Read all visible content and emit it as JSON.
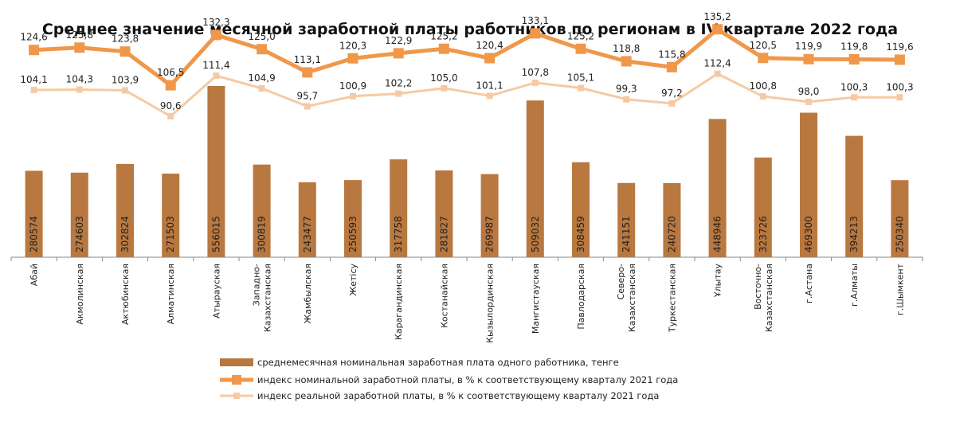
{
  "chart_data": {
    "type": "bar",
    "title": "Среднее значение месячной заработной платы работников по регионам в IV квартале 2022 года",
    "categories": [
      [
        "Абай"
      ],
      [
        "Акмолинская"
      ],
      [
        "Актюбинская"
      ],
      [
        "Алматинская"
      ],
      [
        "Атырауская"
      ],
      [
        "Западно-",
        "Казахстанская"
      ],
      [
        "Жамбылская"
      ],
      [
        "Жетісу"
      ],
      [
        "Карагандинская"
      ],
      [
        "Костанайская"
      ],
      [
        "Кызылординская"
      ],
      [
        "Мангистауская"
      ],
      [
        "Павлодарская"
      ],
      [
        "Северо-",
        "Казахстанская"
      ],
      [
        "Туркестанская"
      ],
      [
        "Ұлытау"
      ],
      [
        "Восточно-",
        "Казахстанская"
      ],
      [
        "г.Астана"
      ],
      [
        "г.Алматы"
      ],
      [
        "г.Шымкент"
      ]
    ],
    "series": [
      {
        "name": "среднемесячная номинальная заработная плата одного работника, тенге",
        "type": "bar",
        "color": "#b9783f",
        "values": [
          280574,
          274603,
          302824,
          271503,
          556015,
          300819,
          243477,
          250593,
          317758,
          281827,
          269987,
          509032,
          308459,
          241151,
          240720,
          448946,
          323726,
          469300,
          394213,
          250340
        ]
      },
      {
        "name": "индекс номинальной заработной платы, в % к соответствующему кварталу 2021 года",
        "type": "line",
        "color": "#f0974a",
        "values": [
          124.6,
          125.8,
          123.8,
          106.5,
          132.3,
          125.0,
          113.1,
          120.3,
          122.9,
          125.2,
          120.4,
          133.1,
          125.2,
          118.8,
          115.8,
          135.2,
          120.5,
          119.9,
          119.8,
          119.6
        ],
        "labels": [
          "124,6",
          "125,8",
          "123,8",
          "106,5",
          "132,3",
          "125,0",
          "113,1",
          "120,3",
          "122,9",
          "125,2",
          "120,4",
          "133,1",
          "125,2",
          "118,8",
          "115,8",
          "135,2",
          "120,5",
          "119,9",
          "119,8",
          "119,6"
        ]
      },
      {
        "name": "индекс реальной заработной платы, в % к соответствующему кварталу 2021 года",
        "type": "line",
        "color": "#f5caa3",
        "values": [
          104.1,
          104.3,
          103.9,
          90.6,
          111.4,
          104.9,
          95.7,
          100.9,
          102.2,
          105.0,
          101.1,
          107.8,
          105.1,
          99.3,
          97.2,
          112.4,
          100.8,
          98.0,
          100.3,
          100.3
        ],
        "labels": [
          "104,1",
          "104,3",
          "103,9",
          "90,6",
          "111,4",
          "104,9",
          "95,7",
          "100,9",
          "102,2",
          "105,0",
          "101,1",
          "107,8",
          "105,1",
          "99,3",
          "97,2",
          "112,4",
          "100,8",
          "98,0",
          "100,3",
          "100,3"
        ]
      }
    ],
    "legend_position": "bottom",
    "grid": false
  }
}
